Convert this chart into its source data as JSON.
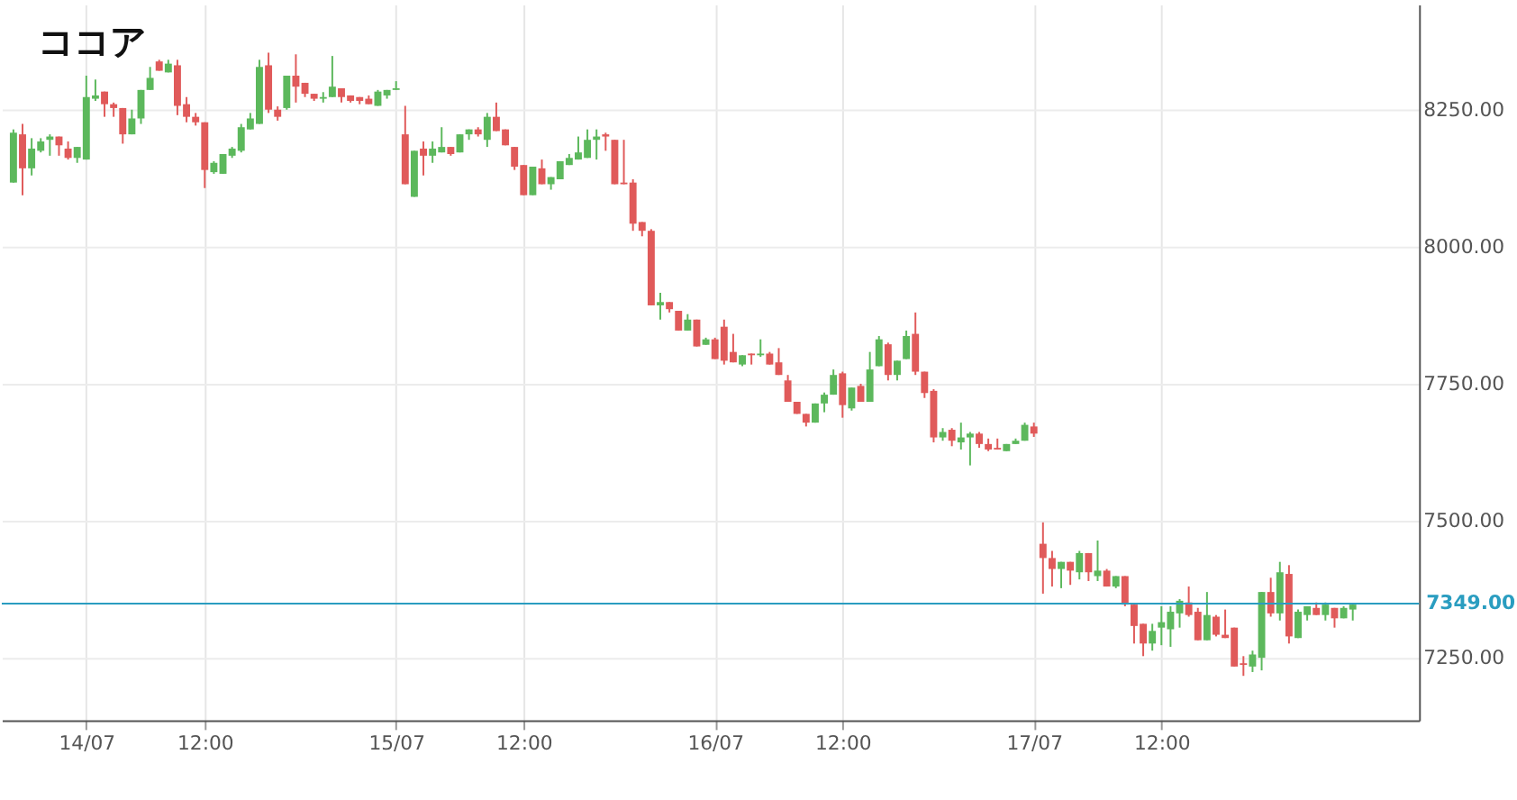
{
  "chart_data": {
    "type": "candlestick",
    "title": "ココア",
    "categories": [
      null,
      null,
      null,
      null,
      null,
      null,
      null,
      null,
      "14/07",
      null,
      null,
      null,
      null,
      null,
      null,
      null,
      null,
      null,
      null,
      null,
      null,
      "12:00",
      null,
      null,
      null,
      null,
      null,
      null,
      null,
      null,
      null,
      null,
      null,
      null,
      null,
      null,
      null,
      null,
      null,
      null,
      null,
      null,
      "15/07",
      null,
      null,
      null,
      null,
      null,
      null,
      null,
      null,
      null,
      null,
      null,
      null,
      null,
      "12:00",
      null,
      null,
      null,
      null,
      null,
      null,
      null,
      null,
      null,
      null,
      null,
      null,
      null,
      null,
      null,
      null,
      null,
      null,
      null,
      null,
      "16/07",
      null,
      null,
      null,
      null,
      null,
      null,
      null,
      null,
      null,
      null,
      null,
      null,
      null,
      "12:00",
      null,
      null,
      null,
      null,
      null,
      null,
      null,
      null,
      null,
      null,
      null,
      null,
      null,
      null,
      null,
      null,
      null,
      null,
      null,
      null,
      "17/07",
      null,
      null,
      null,
      null,
      null,
      null,
      null,
      null,
      null,
      null,
      null,
      null,
      null,
      "12:00",
      null,
      null,
      null,
      null,
      null,
      null,
      null,
      null,
      null,
      null,
      null,
      null,
      null,
      null,
      null,
      null,
      null,
      null,
      null,
      null,
      null
    ],
    "ohlc": [
      [
        8117,
        8214,
        8117,
        8208
      ],
      [
        8205,
        8224,
        8094,
        8143
      ],
      [
        8143,
        8198,
        8130,
        8179
      ],
      [
        8175,
        8198,
        8172,
        8192
      ],
      [
        8195,
        8205,
        8166,
        8201
      ],
      [
        8201,
        8201,
        8166,
        8185
      ],
      [
        8179,
        8192,
        8159,
        8162
      ],
      [
        8162,
        8182,
        8153,
        8182
      ],
      [
        8159,
        8312,
        8159,
        8273
      ],
      [
        8270,
        8305,
        8266,
        8276
      ],
      [
        8283,
        8283,
        8237,
        8260
      ],
      [
        8260,
        8263,
        8237,
        8253
      ],
      [
        8253,
        8253,
        8188,
        8205
      ],
      [
        8205,
        8250,
        8205,
        8234
      ],
      [
        8234,
        8286,
        8224,
        8286
      ],
      [
        8286,
        8328,
        8286,
        8308
      ],
      [
        8338,
        8341,
        8321,
        8321
      ],
      [
        8318,
        8341,
        8318,
        8334
      ],
      [
        8331,
        8341,
        8240,
        8257
      ],
      [
        8260,
        8273,
        8227,
        8237
      ],
      [
        8237,
        8244,
        8221,
        8227
      ],
      [
        8227,
        8227,
        8107,
        8140
      ],
      [
        8136,
        8156,
        8133,
        8153
      ],
      [
        8133,
        8169,
        8133,
        8169
      ],
      [
        8166,
        8182,
        8162,
        8179
      ],
      [
        8175,
        8224,
        8172,
        8218
      ],
      [
        8214,
        8244,
        8214,
        8234
      ],
      [
        8224,
        8341,
        8224,
        8328
      ],
      [
        8331,
        8354,
        8244,
        8250
      ],
      [
        8250,
        8256,
        8230,
        8237
      ],
      [
        8253,
        8312,
        8250,
        8312
      ],
      [
        8312,
        8351,
        8263,
        8292
      ],
      [
        8299,
        8299,
        8273,
        8279
      ],
      [
        8279,
        8279,
        8266,
        8270
      ],
      [
        8270,
        8282,
        8263,
        8273
      ],
      [
        8273,
        8348,
        8273,
        8292
      ],
      [
        8289,
        8289,
        8263,
        8273
      ],
      [
        8276,
        8276,
        8263,
        8266
      ],
      [
        8273,
        8273,
        8260,
        8266
      ],
      [
        8270,
        8276,
        8260,
        8260
      ],
      [
        8257,
        8286,
        8257,
        8283
      ],
      [
        8276,
        8286,
        8270,
        8286
      ],
      [
        8286,
        8302,
        8286,
        8289
      ],
      [
        8205,
        8257,
        8114,
        8114
      ],
      [
        8091,
        8175,
        8091,
        8175
      ],
      [
        8179,
        8192,
        8130,
        8166
      ],
      [
        8166,
        8192,
        8153,
        8179
      ],
      [
        8172,
        8218,
        8172,
        8182
      ],
      [
        8182,
        8182,
        8166,
        8169
      ],
      [
        8172,
        8205,
        8172,
        8205
      ],
      [
        8205,
        8214,
        8195,
        8214
      ],
      [
        8214,
        8218,
        8201,
        8205
      ],
      [
        8195,
        8244,
        8182,
        8237
      ],
      [
        8237,
        8263,
        8211,
        8211
      ],
      [
        8214,
        8214,
        8185,
        8185
      ],
      [
        8182,
        8182,
        8140,
        8146
      ],
      [
        8149,
        8149,
        8094,
        8094
      ],
      [
        8094,
        8146,
        8094,
        8146
      ],
      [
        8143,
        8159,
        8114,
        8114
      ],
      [
        8114,
        8127,
        8104,
        8127
      ],
      [
        8123,
        8156,
        8123,
        8156
      ],
      [
        8149,
        8169,
        8149,
        8162
      ],
      [
        8159,
        8201,
        8159,
        8172
      ],
      [
        8162,
        8214,
        8162,
        8195
      ],
      [
        8195,
        8214,
        8159,
        8201
      ],
      [
        8205,
        8208,
        8175,
        8201
      ],
      [
        8195,
        8195,
        8114,
        8114
      ],
      [
        8117,
        8195,
        8114,
        8114
      ],
      [
        8117,
        8123,
        8029,
        8042
      ],
      [
        8045,
        8045,
        8019,
        8029
      ],
      [
        8029,
        8032,
        7893,
        7893
      ],
      [
        7893,
        7916,
        7867,
        7899
      ],
      [
        7899,
        7899,
        7880,
        7886
      ],
      [
        7883,
        7883,
        7847,
        7847
      ],
      [
        7847,
        7877,
        7847,
        7867
      ],
      [
        7867,
        7867,
        7818,
        7818
      ],
      [
        7821,
        7834,
        7821,
        7831
      ],
      [
        7831,
        7834,
        7795,
        7795
      ],
      [
        7854,
        7867,
        7785,
        7792
      ],
      [
        7808,
        7841,
        7789,
        7789
      ],
      [
        7785,
        7802,
        7782,
        7802
      ],
      [
        7805,
        7805,
        7785,
        7802
      ],
      [
        7802,
        7831,
        7799,
        7805
      ],
      [
        7805,
        7808,
        7785,
        7785
      ],
      [
        7789,
        7815,
        7766,
        7766
      ],
      [
        7756,
        7766,
        7717,
        7717
      ],
      [
        7717,
        7717,
        7695,
        7695
      ],
      [
        7695,
        7695,
        7672,
        7679
      ],
      [
        7679,
        7714,
        7679,
        7714
      ],
      [
        7714,
        7734,
        7698,
        7730
      ],
      [
        7730,
        7776,
        7730,
        7766
      ],
      [
        7769,
        7772,
        7688,
        7711
      ],
      [
        7705,
        7743,
        7701,
        7743
      ],
      [
        7746,
        7750,
        7717,
        7717
      ],
      [
        7717,
        7808,
        7717,
        7776
      ],
      [
        7782,
        7837,
        7782,
        7831
      ],
      [
        7822,
        7825,
        7756,
        7766
      ],
      [
        7766,
        7792,
        7756,
        7792
      ],
      [
        7795,
        7847,
        7795,
        7837
      ],
      [
        7841,
        7880,
        7766,
        7772
      ],
      [
        7772,
        7772,
        7724,
        7733
      ],
      [
        7737,
        7740,
        7643,
        7652
      ],
      [
        7652,
        7669,
        7646,
        7662
      ],
      [
        7666,
        7669,
        7636,
        7646
      ],
      [
        7643,
        7679,
        7630,
        7652
      ],
      [
        7652,
        7662,
        7601,
        7659
      ],
      [
        7659,
        7662,
        7633,
        7640
      ],
      [
        7640,
        7650,
        7627,
        7630
      ],
      [
        7633,
        7650,
        7630,
        7630
      ],
      [
        7627,
        7640,
        7627,
        7640
      ],
      [
        7640,
        7650,
        7640,
        7646
      ],
      [
        7646,
        7679,
        7646,
        7675
      ],
      [
        7672,
        7679,
        7653,
        7659
      ],
      [
        7458,
        7497,
        7367,
        7432
      ],
      [
        7432,
        7445,
        7380,
        7412
      ],
      [
        7412,
        7425,
        7377,
        7425
      ],
      [
        7425,
        7425,
        7383,
        7409
      ],
      [
        7406,
        7445,
        7393,
        7441
      ],
      [
        7441,
        7441,
        7390,
        7406
      ],
      [
        7399,
        7464,
        7390,
        7409
      ],
      [
        7409,
        7412,
        7380,
        7380
      ],
      [
        7380,
        7399,
        7377,
        7399
      ],
      [
        7399,
        7399,
        7344,
        7347
      ],
      [
        7347,
        7347,
        7276,
        7308
      ],
      [
        7312,
        7312,
        7253,
        7276
      ],
      [
        7276,
        7312,
        7263,
        7299
      ],
      [
        7305,
        7344,
        7273,
        7315
      ],
      [
        7302,
        7344,
        7270,
        7334
      ],
      [
        7331,
        7357,
        7305,
        7354
      ],
      [
        7351,
        7380,
        7325,
        7328
      ],
      [
        7334,
        7341,
        7282,
        7282
      ],
      [
        7282,
        7370,
        7282,
        7328
      ],
      [
        7325,
        7328,
        7289,
        7292
      ],
      [
        7292,
        7338,
        7286,
        7286
      ],
      [
        7305,
        7305,
        7234,
        7234
      ],
      [
        7240,
        7253,
        7217,
        7237
      ],
      [
        7234,
        7263,
        7224,
        7256
      ],
      [
        7250,
        7370,
        7227,
        7370
      ],
      [
        7370,
        7396,
        7325,
        7331
      ],
      [
        7331,
        7425,
        7318,
        7406
      ],
      [
        7403,
        7419,
        7276,
        7289
      ],
      [
        7286,
        7338,
        7286,
        7334
      ],
      [
        7328,
        7344,
        7318,
        7344
      ],
      [
        7341,
        7351,
        7328,
        7328
      ],
      [
        7328,
        7351,
        7318,
        7347
      ],
      [
        7341,
        7341,
        7305,
        7322
      ],
      [
        7322,
        7344,
        7322,
        7341
      ],
      [
        7338,
        7347,
        7318,
        7347
      ]
    ],
    "colors": [
      "#5cb85c",
      "#e05a5a",
      "#5cb85c",
      "#5cb85c",
      "#5cb85c",
      "#e05a5a",
      "#e05a5a",
      "#5cb85c",
      "#5cb85c",
      "#5cb85c",
      "#e05a5a",
      "#e05a5a",
      "#e05a5a",
      "#5cb85c",
      "#5cb85c",
      "#5cb85c",
      "#e05a5a",
      "#5cb85c",
      "#e05a5a",
      "#e05a5a",
      "#e05a5a",
      "#e05a5a",
      "#5cb85c",
      "#5cb85c",
      "#5cb85c",
      "#5cb85c",
      "#5cb85c",
      "#5cb85c",
      "#e05a5a",
      "#e05a5a",
      "#5cb85c",
      "#e05a5a",
      "#e05a5a",
      "#e05a5a",
      "#5cb85c",
      "#5cb85c",
      "#e05a5a",
      "#e05a5a",
      "#e05a5a",
      "#e05a5a",
      "#5cb85c",
      "#5cb85c",
      "#5cb85c",
      "#e05a5a",
      "#5cb85c",
      "#e05a5a",
      "#5cb85c",
      "#5cb85c",
      "#e05a5a",
      "#5cb85c",
      "#5cb85c",
      "#e05a5a",
      "#5cb85c",
      "#e05a5a",
      "#e05a5a",
      "#e05a5a",
      "#e05a5a",
      "#5cb85c",
      "#e05a5a",
      "#5cb85c",
      "#5cb85c",
      "#5cb85c",
      "#5cb85c",
      "#5cb85c",
      "#5cb85c",
      "#e05a5a",
      "#e05a5a",
      "#e05a5a",
      "#e05a5a",
      "#e05a5a",
      "#e05a5a",
      "#5cb85c",
      "#e05a5a",
      "#e05a5a",
      "#5cb85c",
      "#e05a5a",
      "#5cb85c",
      "#e05a5a",
      "#e05a5a",
      "#e05a5a",
      "#5cb85c",
      "#e05a5a",
      "#5cb85c",
      "#e05a5a",
      "#e05a5a",
      "#e05a5a",
      "#e05a5a",
      "#e05a5a",
      "#5cb85c",
      "#5cb85c",
      "#5cb85c",
      "#e05a5a",
      "#5cb85c",
      "#e05a5a",
      "#5cb85c",
      "#5cb85c",
      "#e05a5a",
      "#5cb85c",
      "#5cb85c",
      "#e05a5a",
      "#e05a5a",
      "#e05a5a",
      "#5cb85c",
      "#e05a5a",
      "#5cb85c",
      "#5cb85c",
      "#e05a5a",
      "#e05a5a",
      "#e05a5a",
      "#5cb85c",
      "#5cb85c",
      "#5cb85c",
      "#e05a5a",
      "#e05a5a",
      "#e05a5a",
      "#5cb85c",
      "#e05a5a",
      "#5cb85c",
      "#e05a5a",
      "#5cb85c",
      "#e05a5a",
      "#5cb85c",
      "#e05a5a",
      "#e05a5a",
      "#e05a5a",
      "#5cb85c",
      "#5cb85c",
      "#5cb85c",
      "#5cb85c",
      "#e05a5a",
      "#e05a5a",
      "#5cb85c",
      "#e05a5a",
      "#e05a5a",
      "#e05a5a",
      "#e05a5a",
      "#5cb85c",
      "#5cb85c",
      "#e05a5a",
      "#5cb85c",
      "#e05a5a",
      "#5cb85c",
      "#5cb85c",
      "#e05a5a",
      "#5cb85c",
      "#e05a5a",
      "#5cb85c",
      "#5cb85c"
    ],
    "ylim": [
      7136,
      8442
    ],
    "yticks": [
      {
        "value": 7250,
        "label": "7250.00"
      },
      {
        "value": 7500,
        "label": "7500.00"
      },
      {
        "value": 7750,
        "label": "7750.00"
      },
      {
        "value": 8000,
        "label": "8000.00"
      },
      {
        "value": 8250,
        "label": "8250.00"
      }
    ],
    "ref_lines": [
      {
        "axis": "y",
        "value": 7349,
        "label": "7349.00",
        "color": "#2a9dc0"
      }
    ],
    "grid": true
  }
}
